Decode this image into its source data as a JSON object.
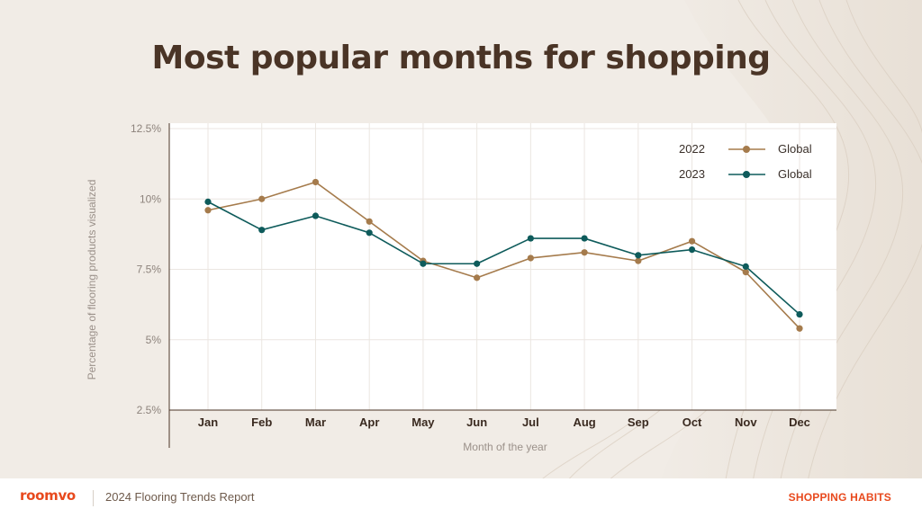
{
  "title": "Most popular months for shopping",
  "footer": {
    "brand": "roomvo",
    "report": "2024 Flooring Trends Report",
    "section": "SHOPPING HABITS"
  },
  "colors": {
    "series_2022": "#a57b4c",
    "series_2023": "#0e5b5b",
    "title": "#4a3426",
    "accent": "#e8491d"
  },
  "chart_data": {
    "type": "line",
    "xlabel": "Month of the year",
    "ylabel": "Percentage of flooring products visualized",
    "categories": [
      "Jan",
      "Feb",
      "Mar",
      "Apr",
      "May",
      "Jun",
      "Jul",
      "Aug",
      "Sep",
      "Oct",
      "Nov",
      "Dec"
    ],
    "ylim": [
      2.5,
      12.5
    ],
    "yticks": [
      2.5,
      5,
      7.5,
      10,
      12.5
    ],
    "ytick_labels": [
      "2.5%",
      "5%",
      "7.5%",
      "10%",
      "12.5%"
    ],
    "grid": true,
    "legend_position": "top-right",
    "series": [
      {
        "year": "2022",
        "name": "Global",
        "values": [
          9.6,
          10.0,
          10.6,
          9.2,
          7.8,
          7.2,
          7.9,
          8.1,
          7.8,
          8.5,
          7.4,
          5.4
        ]
      },
      {
        "year": "2023",
        "name": "Global",
        "values": [
          9.9,
          8.9,
          9.4,
          8.8,
          7.7,
          7.7,
          8.6,
          8.6,
          8.0,
          8.2,
          7.6,
          5.9
        ]
      }
    ]
  }
}
